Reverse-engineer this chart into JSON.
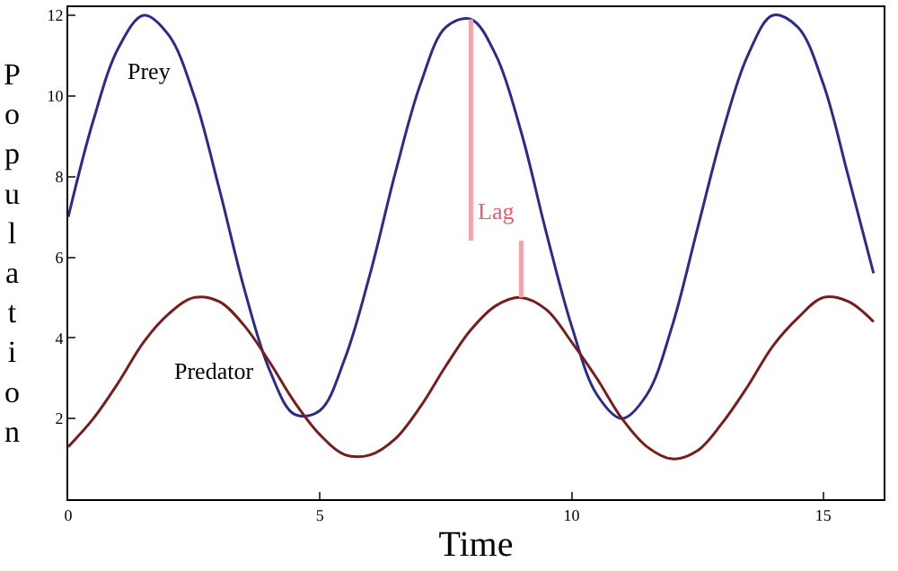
{
  "chart_data": {
    "type": "line",
    "xlabel": "Time",
    "ylabel": "Population",
    "x": [
      0,
      0.5,
      1,
      1.5,
      2,
      2.5,
      3,
      3.5,
      4,
      4.5,
      5,
      5.5,
      6,
      6.5,
      7,
      7.5,
      8,
      8.5,
      9,
      9.5,
      10,
      10.5,
      11,
      11.5,
      12,
      12.5,
      13,
      13.5,
      14,
      14.5,
      15,
      15.5,
      16
    ],
    "series": [
      {
        "name": "Prey",
        "color": "#2b2b8c",
        "values": [
          7,
          9.4,
          11.2,
          12.0,
          11.5,
          10.0,
          7.7,
          5.2,
          3.2,
          2.1,
          2.2,
          3.5,
          5.6,
          8.1,
          10.3,
          11.7,
          11.9,
          11.0,
          9.1,
          6.6,
          4.3,
          2.6,
          2.0,
          2.6,
          4.3,
          6.7,
          9.1,
          11.0,
          12.0,
          11.7,
          10.3,
          8.0,
          5.6
        ]
      },
      {
        "name": "Predator",
        "color": "#7a1c1c",
        "values": [
          1.3,
          2.0,
          2.9,
          3.9,
          4.6,
          5.0,
          4.9,
          4.3,
          3.4,
          2.4,
          1.6,
          1.1,
          1.1,
          1.5,
          2.3,
          3.3,
          4.2,
          4.8,
          5.0,
          4.7,
          3.9,
          3.0,
          2.0,
          1.3,
          1.0,
          1.2,
          1.9,
          2.8,
          3.8,
          4.5,
          5.0,
          4.9,
          4.4
        ]
      }
    ],
    "annotations": [
      {
        "text": "Lag",
        "x": 8,
        "y": 11.9
      }
    ],
    "xlim": [
      0,
      16.2
    ],
    "xticks": [
      0,
      5,
      10,
      15
    ],
    "ylim": [
      0,
      12.2
    ],
    "yticks": [
      2,
      4,
      6,
      8,
      10,
      12
    ],
    "legend": false,
    "marker": "none",
    "line_style": "solid"
  }
}
